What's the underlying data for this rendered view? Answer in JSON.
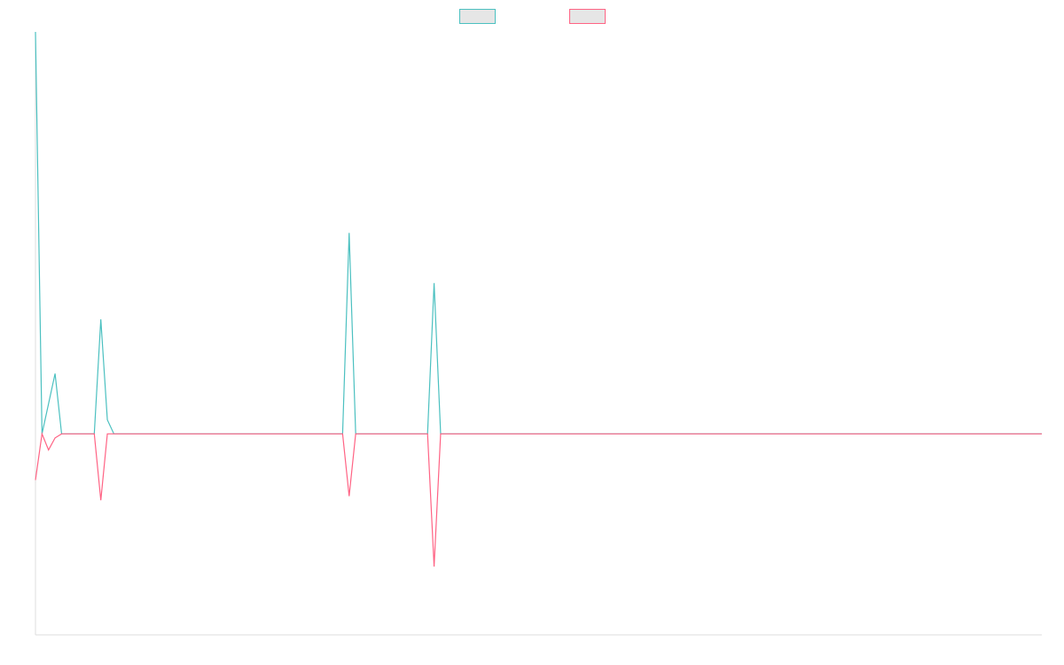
{
  "chart_data": {
    "type": "line",
    "title": "",
    "xlabel": "",
    "ylabel": "",
    "grid": false,
    "legend_position": "top-center",
    "x_count": 155,
    "ylim": [
      -1.0,
      2.0
    ],
    "series": [
      {
        "name": "",
        "color": "#4bc0c0",
        "legend_fill": "#e6e6e6",
        "points": [
          [
            0,
            2.0
          ],
          [
            1,
            0.0
          ],
          [
            2,
            0.15
          ],
          [
            3,
            0.3
          ],
          [
            4,
            0.0
          ],
          [
            9,
            0.0
          ],
          [
            10,
            0.57
          ],
          [
            11,
            0.07
          ],
          [
            12,
            0.0
          ],
          [
            27,
            0.0
          ],
          [
            28,
            0.0
          ],
          [
            29,
            0.0
          ],
          [
            47,
            0.0
          ],
          [
            48,
            1.0
          ],
          [
            49,
            0.0
          ],
          [
            60,
            0.0
          ],
          [
            61,
            0.75
          ],
          [
            62,
            0.0
          ],
          [
            63,
            0.0
          ],
          [
            64,
            0.0
          ],
          [
            154,
            0.0
          ]
        ]
      },
      {
        "name": "",
        "color": "#ff6384",
        "legend_fill": "#e6e6e6",
        "points": [
          [
            0,
            -0.23
          ],
          [
            1,
            0.0
          ],
          [
            2,
            -0.08
          ],
          [
            3,
            -0.02
          ],
          [
            4,
            0.0
          ],
          [
            9,
            0.0
          ],
          [
            10,
            -0.33
          ],
          [
            11,
            0.0
          ],
          [
            12,
            0.0
          ],
          [
            27,
            0.0
          ],
          [
            28,
            0.0
          ],
          [
            29,
            0.0
          ],
          [
            47,
            0.0
          ],
          [
            48,
            -0.31
          ],
          [
            49,
            0.0
          ],
          [
            60,
            0.0
          ],
          [
            61,
            -0.66
          ],
          [
            62,
            0.0
          ],
          [
            63,
            0.0
          ],
          [
            64,
            0.0
          ],
          [
            154,
            0.0
          ]
        ]
      }
    ]
  }
}
